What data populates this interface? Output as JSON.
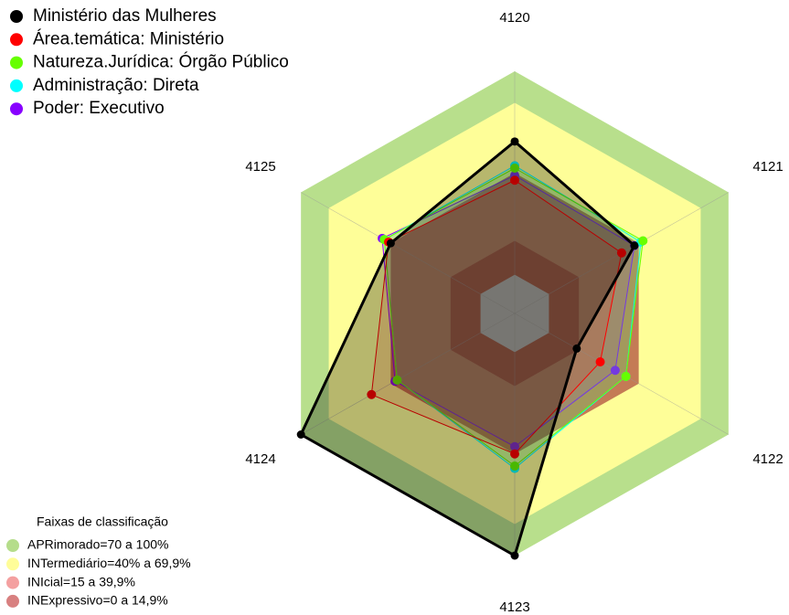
{
  "chart_data": {
    "type": "radar",
    "categories": [
      "4120",
      "4121",
      "4122",
      "4123",
      "4124",
      "4125"
    ],
    "rlim": [
      0,
      100
    ],
    "series": [
      {
        "name": "Ministério das Mulheres",
        "color": "#000000",
        "values": [
          71,
          56,
          29,
          100,
          100,
          58
        ]
      },
      {
        "name": "Área.temática: Ministério",
        "color": "#ff0000",
        "values": [
          55,
          50,
          40,
          58,
          67,
          59
        ]
      },
      {
        "name": "Natureza.Jurídica: Órgão Público",
        "color": "#66ff00",
        "values": [
          60,
          60,
          52,
          63,
          55,
          61
        ]
      },
      {
        "name": "Administração: Direta",
        "color": "#00ffff",
        "values": [
          61,
          59,
          52,
          64,
          55,
          61
        ]
      },
      {
        "name": "Poder: Executivo",
        "color": "#8800ff",
        "values": [
          57,
          56,
          47,
          55,
          56,
          62
        ]
      }
    ],
    "legend_title": "Faixas de classificação",
    "bands": [
      {
        "label": "APRimorado=70 a 100%",
        "color": "#b8df8c",
        "legend_color": "#b5dd8b",
        "outer": 100
      },
      {
        "label": "INTermediário=40% a 69,9%",
        "color": "#fefe98",
        "legend_color": "#fffd99",
        "outer": 87
      },
      {
        "label": "INIcial=15 a 39,9%",
        "color": "#c47b55",
        "legend_color": "#f4a0a0",
        "outer": 58
      },
      {
        "label": "INExpressivo=0 a 14,9%",
        "color": "#a8412c",
        "legend_color": "#d88080",
        "outer": 30
      }
    ]
  }
}
